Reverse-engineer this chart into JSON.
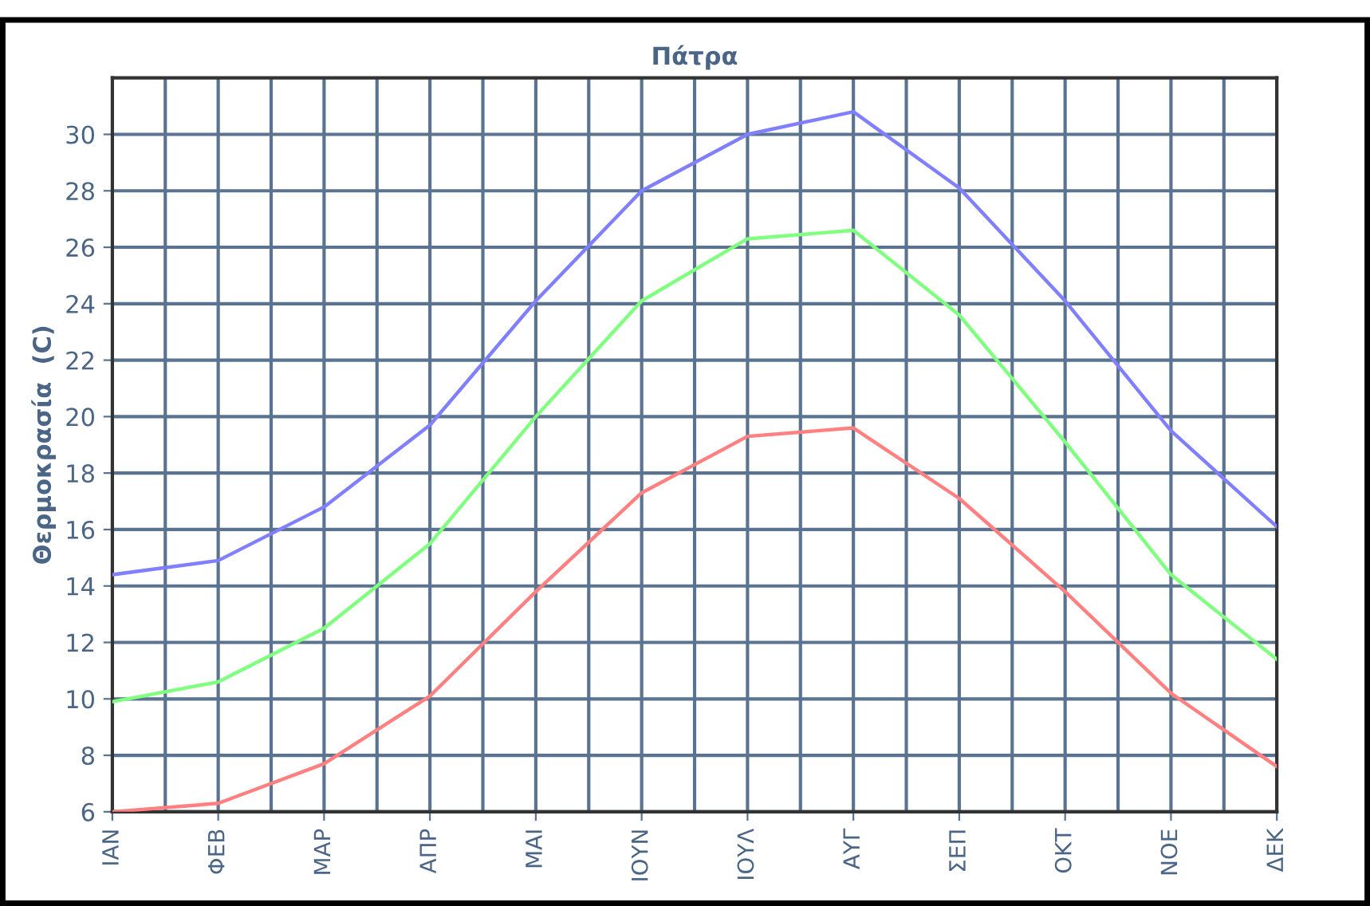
{
  "chart_data": {
    "type": "line",
    "title": "Πάτρα",
    "ylabel": "Θερμοκρασία  (C)",
    "categories": [
      "IAN",
      "ΦΕΒ",
      "ΜΑΡ",
      "ΑΠΡ",
      "ΜΑΙ",
      "ΙΟΥΝ",
      "ΙΟΥΛ",
      "ΑΥΓ",
      "ΣΕΠ",
      "ΟΚΤ",
      "ΝΟΕ",
      "ΔΕΚ"
    ],
    "series": [
      {
        "color": "#8080ff",
        "values": [
          14.4,
          14.9,
          16.8,
          19.7,
          24.1,
          28.0,
          30.0,
          30.8,
          28.1,
          24.1,
          19.5,
          16.1
        ]
      },
      {
        "color": "#80ff80",
        "values": [
          9.9,
          10.6,
          12.5,
          15.5,
          20.0,
          24.1,
          26.3,
          26.6,
          23.6,
          19.1,
          14.4,
          11.4
        ]
      },
      {
        "color": "#ff8080",
        "values": [
          6.0,
          6.3,
          7.7,
          10.1,
          13.8,
          17.3,
          19.3,
          19.6,
          17.1,
          13.8,
          10.2,
          7.6
        ]
      }
    ],
    "ylim": [
      6,
      32
    ],
    "yticks": [
      6,
      8,
      10,
      12,
      14,
      16,
      18,
      20,
      22,
      24,
      26,
      28,
      30
    ],
    "grid": true,
    "legend": false,
    "marker": "none",
    "line_style": "solid"
  }
}
